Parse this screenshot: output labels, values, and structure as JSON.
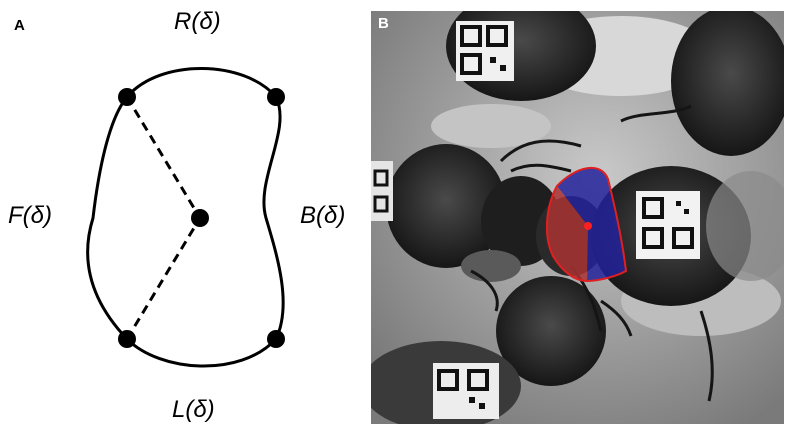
{
  "panel_a": {
    "letter": "A",
    "labels": {
      "right": "R(δ)",
      "front": "F(δ)",
      "back": "B(δ)",
      "left": "L(δ)"
    }
  },
  "panel_b": {
    "letter": "B"
  },
  "colors": {
    "outline": "#000000",
    "front_sector": "#b23a3a",
    "back_sector": "#2a2a9a",
    "sector_outline": "#e02020",
    "center_dot": "#ff2020"
  }
}
